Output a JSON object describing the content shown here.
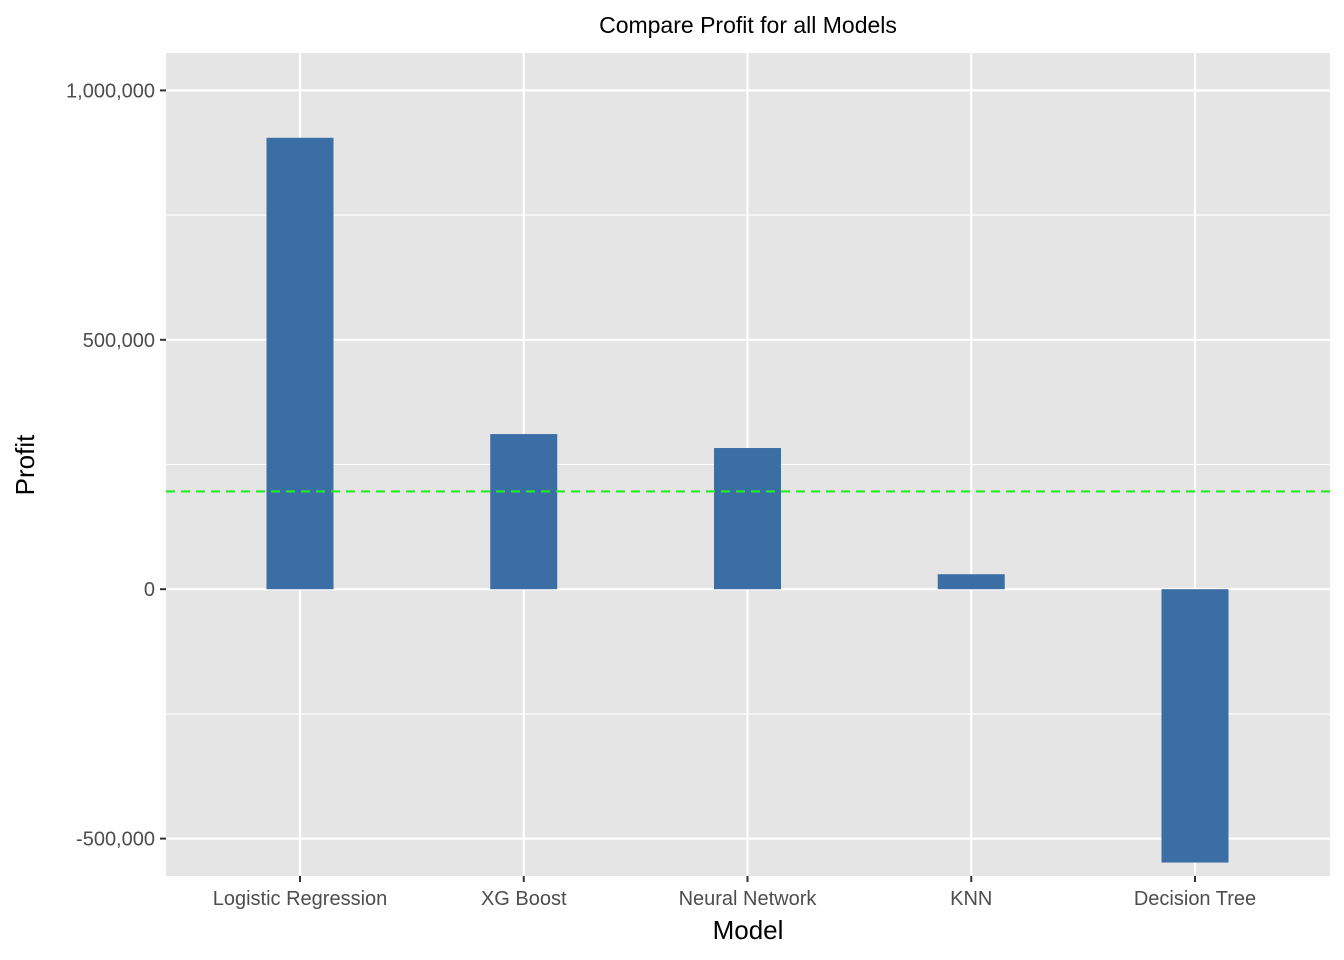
{
  "chart_data": {
    "type": "bar",
    "title": "Compare Profit for all Models",
    "xlabel": "Model",
    "ylabel": "Profit",
    "categories": [
      "Logistic Regression",
      "XG Boost",
      "Neural Network",
      "KNN",
      "Decision Tree"
    ],
    "values": [
      905000,
      311000,
      283000,
      30000,
      -548000
    ],
    "reference_line": {
      "value": 196000,
      "style": "dashed",
      "color": "#22ee22"
    },
    "ylim": [
      -575000,
      1075000
    ],
    "yticks": [
      -500000,
      0,
      500000,
      1000000
    ],
    "ytick_labels": [
      "-500,000",
      "0",
      "500,000",
      "1,000,000"
    ],
    "grid": true,
    "legend": "none",
    "colors": {
      "bar": "#3a6ea5",
      "panel": "#e5e5e5",
      "grid": "#ffffff"
    }
  }
}
